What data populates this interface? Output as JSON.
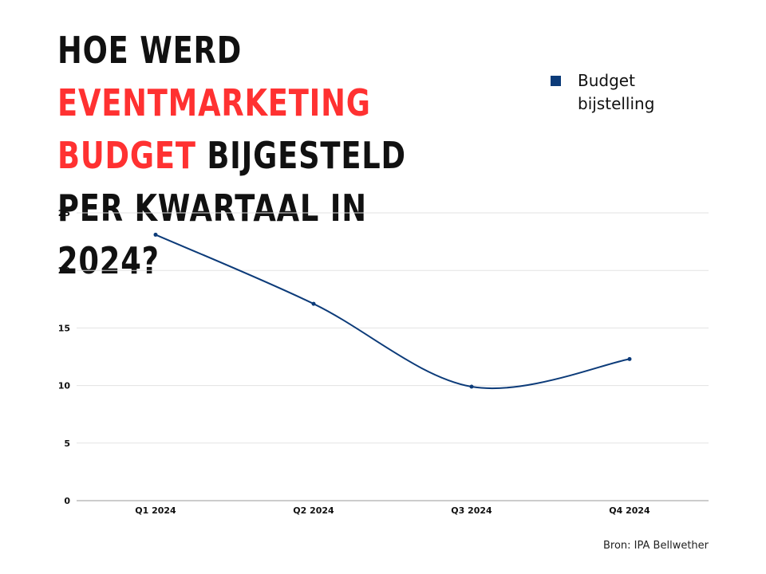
{
  "title": {
    "part1": "HOE WERD ",
    "accent": "EVENTMARKETING BUDGET",
    "part2": " BIJGESTELD PER KWARTAAL IN 2024?"
  },
  "colors": {
    "accent": "#ff3131",
    "series": "#0c3b79",
    "grid": "#e3e3e3"
  },
  "legend": {
    "placement": "top-right",
    "label": "Budget bijstelling"
  },
  "source": "Bron: IPA Bellwether",
  "chart_data": {
    "type": "line",
    "categories": [
      "Q1 2024",
      "Q2 2024",
      "Q3 2024",
      "Q4 2024"
    ],
    "series": [
      {
        "name": "Budget bijstelling",
        "values": [
          23.1,
          17.1,
          9.9,
          12.3
        ]
      }
    ],
    "ylim": [
      0,
      25
    ],
    "yticks": [
      0,
      5,
      10,
      15,
      20,
      25
    ],
    "grid": true,
    "smooth": true,
    "xlabel": "",
    "ylabel": ""
  }
}
